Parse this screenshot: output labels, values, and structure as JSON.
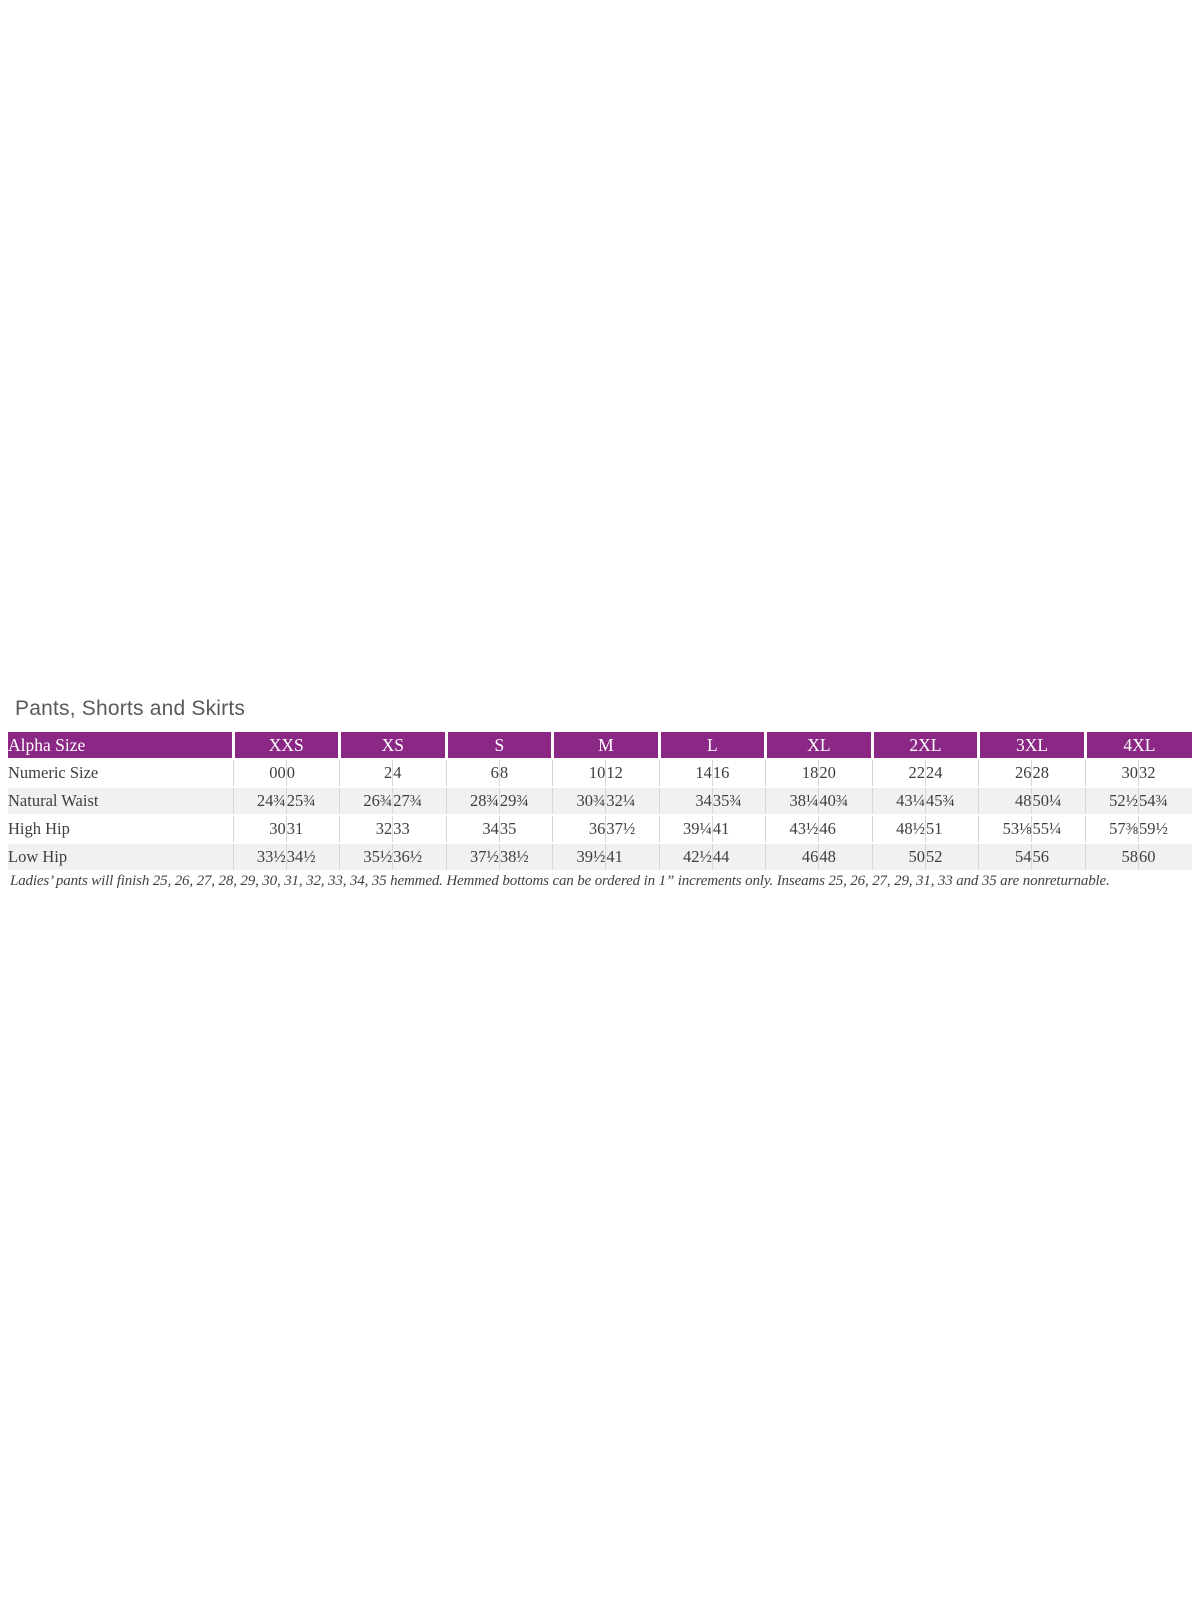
{
  "page": {
    "title": "Pants, Shorts and Skirts"
  },
  "size_chart": {
    "corner_label": "Alpha Size",
    "groups": [
      "XXS",
      "XS",
      "S",
      "M",
      "L",
      "XL",
      "2XL",
      "3XL",
      "4XL"
    ],
    "rows": [
      {
        "label": "Numeric Size",
        "values": [
          [
            "00",
            "0"
          ],
          [
            "2",
            "4"
          ],
          [
            "6",
            "8"
          ],
          [
            "10",
            "12"
          ],
          [
            "14",
            "16"
          ],
          [
            "18",
            "20"
          ],
          [
            "22",
            "24"
          ],
          [
            "26",
            "28"
          ],
          [
            "30",
            "32"
          ]
        ]
      },
      {
        "label": "Natural Waist",
        "values": [
          [
            "24¾",
            "25¾"
          ],
          [
            "26¾",
            "27¾"
          ],
          [
            "28¾",
            "29¾"
          ],
          [
            "30¾",
            "32¼"
          ],
          [
            "34",
            "35¾"
          ],
          [
            "38¼",
            "40¾"
          ],
          [
            "43¼",
            "45¾"
          ],
          [
            "48",
            "50¼"
          ],
          [
            "52½",
            "54¾"
          ]
        ]
      },
      {
        "label": "High Hip",
        "values": [
          [
            "30",
            "31"
          ],
          [
            "32",
            "33"
          ],
          [
            "34",
            "35"
          ],
          [
            "36",
            "37½"
          ],
          [
            "39¼",
            "41"
          ],
          [
            "43½",
            "46"
          ],
          [
            "48½",
            "51"
          ],
          [
            "53⅛",
            "55¼"
          ],
          [
            "57⅜",
            "59½"
          ]
        ]
      },
      {
        "label": "Low Hip",
        "values": [
          [
            "33½",
            "34½"
          ],
          [
            "35½",
            "36½"
          ],
          [
            "37½",
            "38½"
          ],
          [
            "39½",
            "41"
          ],
          [
            "42½",
            "44"
          ],
          [
            "46",
            "48"
          ],
          [
            "50",
            "52"
          ],
          [
            "54",
            "56"
          ],
          [
            "58",
            "60"
          ]
        ]
      }
    ],
    "colors": {
      "header_bg": "#8B2886",
      "header_text": "#ffffff",
      "row_stripe": "#F2F0F1",
      "cell_text": "#3E3E40",
      "divider": "#D8D5D7",
      "title_text": "#58595B"
    }
  },
  "footnote": "Ladies’ pants will finish 25, 26, 27, 28, 29, 30, 31, 32, 33, 34, 35 hemmed. Hemmed bottoms can be ordered in 1” increments only. Inseams 25, 26, 27, 29, 31, 33 and 35 are nonreturnable."
}
